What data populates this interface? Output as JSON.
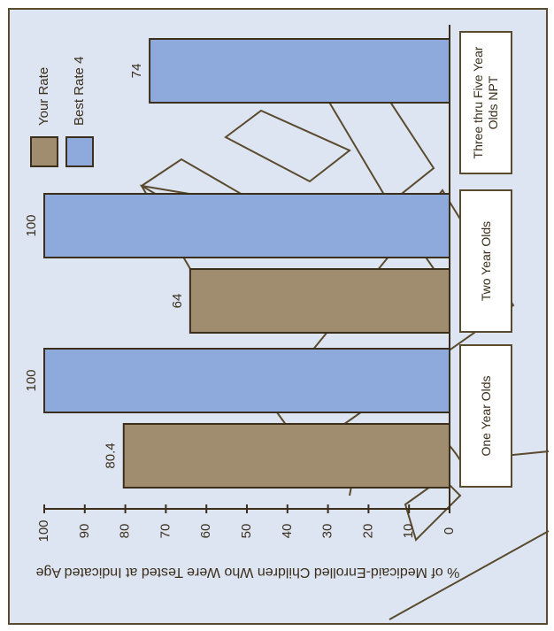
{
  "chart_data": {
    "type": "bar",
    "orientation": "rotated",
    "y_label": "% of Medicaid-Enrolled Children Who Were Tested at Indicated Age",
    "categories": [
      "One Year Olds",
      "Two Year Olds",
      "Three thru Five Year Olds NPT"
    ],
    "series": [
      {
        "name": "Your Rate",
        "color": "#a08c6e",
        "values": [
          80.4,
          64,
          null
        ]
      },
      {
        "name": "Best Rate 4",
        "color": "#8eaadc",
        "values": [
          100,
          100,
          74
        ]
      }
    ],
    "ylim": [
      0,
      100
    ],
    "yticks": [
      0,
      10,
      20,
      30,
      40,
      50,
      60,
      70,
      80,
      90,
      100
    ]
  }
}
